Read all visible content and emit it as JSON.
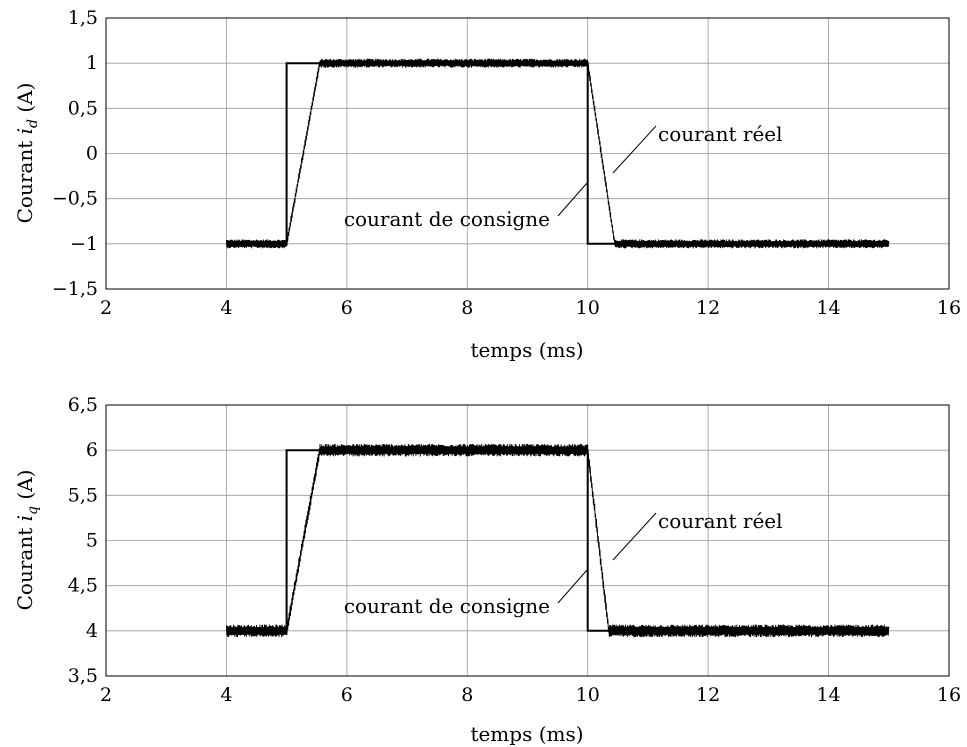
{
  "chart_data": [
    {
      "type": "line",
      "xlabel": "temps (ms)",
      "ylabel": "Courant",
      "ylabel_var": "i",
      "ylabel_sub": "d",
      "ylabel_unit": "(A)",
      "xlim": [
        2,
        16
      ],
      "ylim": [
        -1.5,
        1.5
      ],
      "xticks": [
        2,
        4,
        6,
        8,
        10,
        12,
        14,
        16
      ],
      "yticks": [
        -1.5,
        -1,
        -0.5,
        0,
        0.5,
        1,
        1.5
      ],
      "xtick_labels": [
        "2",
        "4",
        "6",
        "8",
        "10",
        "12",
        "14",
        "16"
      ],
      "ytick_labels": [
        "−1,5",
        "−1",
        "−0,5",
        "0",
        "0,5",
        "1",
        "1,5"
      ],
      "grid": true,
      "annotations": {
        "real": "courant réel",
        "reference": "courant de consigne"
      },
      "series": [
        {
          "role": "reference",
          "x": [
            4,
            5,
            5,
            10,
            10,
            15
          ],
          "y": [
            -1,
            -1,
            1,
            1,
            -1,
            -1
          ]
        },
        {
          "role": "real",
          "x": [
            4,
            5,
            5.55,
            10,
            10.45,
            15
          ],
          "y": [
            -1,
            -1,
            1,
            1,
            -1,
            -1
          ],
          "ripple": 0.05
        }
      ]
    },
    {
      "type": "line",
      "xlabel": "temps (ms)",
      "ylabel": "Courant",
      "ylabel_var": "i",
      "ylabel_sub": "q",
      "ylabel_unit": "(A)",
      "xlim": [
        2,
        16
      ],
      "ylim": [
        3.5,
        6.5
      ],
      "xticks": [
        2,
        4,
        6,
        8,
        10,
        12,
        14,
        16
      ],
      "yticks": [
        3.5,
        4,
        4.5,
        5,
        5.5,
        6,
        6.5
      ],
      "xtick_labels": [
        "2",
        "4",
        "6",
        "8",
        "10",
        "12",
        "14",
        "16"
      ],
      "ytick_labels": [
        "3,5",
        "4",
        "4,5",
        "5",
        "5,5",
        "6",
        "6,5"
      ],
      "grid": true,
      "annotations": {
        "real": "courant réel",
        "reference": "courant de consigne"
      },
      "series": [
        {
          "role": "reference",
          "x": [
            4,
            5,
            5,
            10,
            10,
            15
          ],
          "y": [
            4,
            4,
            6,
            6,
            4,
            4
          ]
        },
        {
          "role": "real",
          "x": [
            4,
            5,
            5.55,
            10,
            10.35,
            15
          ],
          "y": [
            4,
            4,
            6,
            6,
            4,
            4
          ],
          "ripple": 0.07
        }
      ]
    }
  ]
}
